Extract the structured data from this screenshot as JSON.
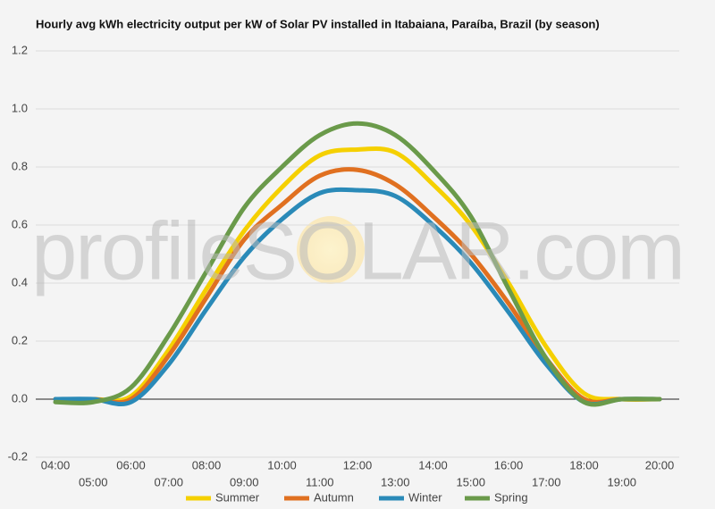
{
  "chart_data": {
    "type": "line",
    "title": "Hourly avg kWh electricity output per kW of Solar PV installed in Itabaiana, Paraíba, Brazil (by season)",
    "watermark": "profileSOLAR.com",
    "categories": [
      "04:00",
      "05:00",
      "06:00",
      "07:00",
      "08:00",
      "09:00",
      "10:00",
      "11:00",
      "12:00",
      "13:00",
      "14:00",
      "15:00",
      "16:00",
      "17:00",
      "18:00",
      "19:00",
      "20:00"
    ],
    "series": [
      {
        "name": "Summer",
        "color": "#f5d000",
        "values": [
          0,
          0,
          0.01,
          0.17,
          0.38,
          0.58,
          0.73,
          0.84,
          0.86,
          0.85,
          0.74,
          0.6,
          0.4,
          0.18,
          0.02,
          0,
          0
        ]
      },
      {
        "name": "Autumn",
        "color": "#e07020",
        "values": [
          0,
          0,
          0,
          0.15,
          0.35,
          0.55,
          0.67,
          0.77,
          0.79,
          0.74,
          0.63,
          0.5,
          0.33,
          0.14,
          0,
          0,
          0
        ]
      },
      {
        "name": "Winter",
        "color": "#2a8ab8",
        "values": [
          0,
          0,
          -0.01,
          0.12,
          0.31,
          0.49,
          0.62,
          0.71,
          0.72,
          0.7,
          0.6,
          0.47,
          0.3,
          0.12,
          -0.01,
          0,
          0
        ]
      },
      {
        "name": "Spring",
        "color": "#6a9a4a",
        "values": [
          -0.01,
          -0.01,
          0.04,
          0.22,
          0.44,
          0.66,
          0.8,
          0.91,
          0.95,
          0.91,
          0.79,
          0.63,
          0.38,
          0.14,
          -0.01,
          0,
          0
        ]
      }
    ],
    "ylim": [
      -0.2,
      1.2
    ],
    "yticks": [
      -0.2,
      {
        "value": 0,
        "label": "0.0"
      },
      0.2,
      0.4,
      0.6,
      0.8,
      {
        "value": 1,
        "label": "1.0"
      },
      1.2
    ],
    "grid": true
  }
}
